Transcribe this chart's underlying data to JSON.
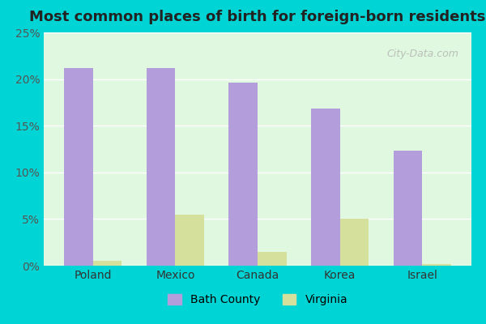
{
  "title": "Most common places of birth for foreign-born residents",
  "categories": [
    "Poland",
    "Mexico",
    "Canada",
    "Korea",
    "Israel"
  ],
  "bath_county": [
    21.2,
    21.2,
    19.6,
    16.8,
    12.3
  ],
  "virginia": [
    0.5,
    5.5,
    1.5,
    5.0,
    0.2
  ],
  "bath_color": "#b39ddb",
  "virginia_color": "#d4e09b",
  "bar_edge_color": "none",
  "background_color": "#e0f7e0",
  "outer_background": "#00d4d4",
  "ylim": [
    0,
    25
  ],
  "yticks": [
    0,
    5,
    10,
    15,
    20,
    25
  ],
  "ytick_labels": [
    "0%",
    "5%",
    "10%",
    "15%",
    "20%",
    "25%"
  ],
  "legend_bath": "Bath County",
  "legend_virginia": "Virginia",
  "bar_width": 0.35,
  "watermark": "City-Data.com"
}
